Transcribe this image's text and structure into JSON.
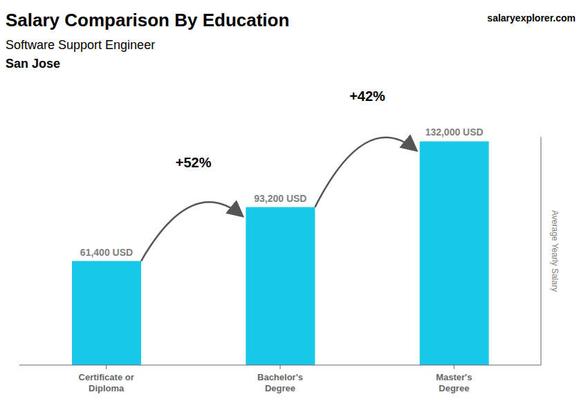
{
  "chart_data": {
    "type": "bar",
    "title": "Salary Comparison By Education",
    "subtitle": [
      "Software Support Engineer",
      "San Jose"
    ],
    "ylabel": "Average Yearly Salary",
    "annotations": [
      "salaryexplorer.com",
      "+52%",
      "+42%"
    ],
    "categories": [
      "Certificate or\nDiploma",
      "Bachelor's\nDegree",
      "Master's\nDegree"
    ],
    "values": [
      61400,
      93200,
      132000
    ],
    "value_labels": [
      "61,400 USD",
      "93,200 USD",
      "132,000 USD"
    ],
    "data_labels": true,
    "color": "#18C8E8",
    "ylim": [
      0,
      134640
    ],
    "tick_labels": "x",
    "grid": false
  }
}
